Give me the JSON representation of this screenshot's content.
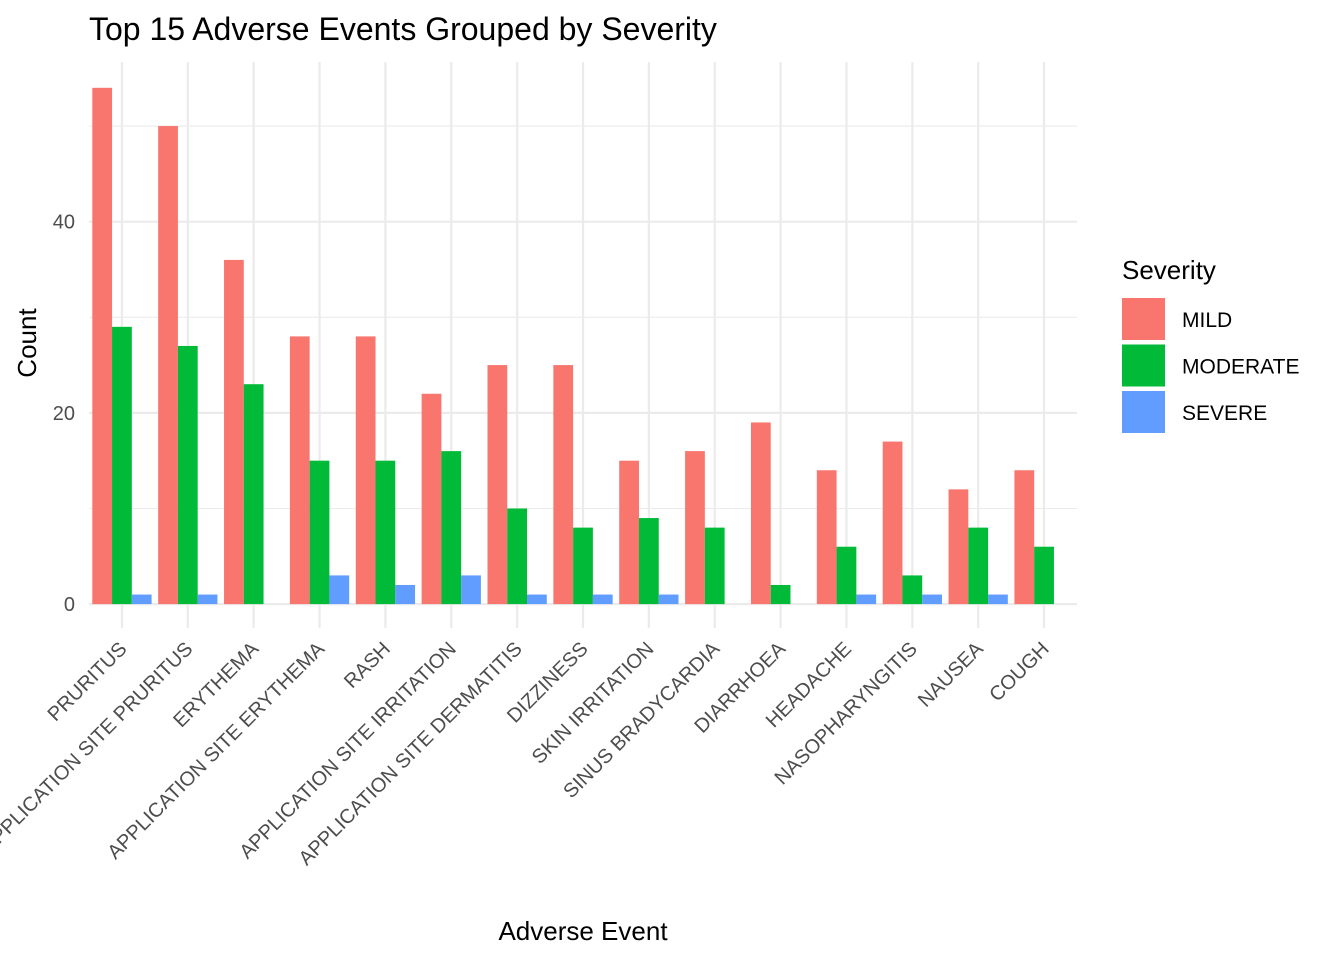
{
  "chart_data": {
    "type": "bar",
    "title": "Top 15 Adverse Events Grouped by Severity",
    "xlabel": "Adverse Event",
    "ylabel": "Count",
    "ylim": [
      -2.5,
      56.7
    ],
    "yticks": [
      0,
      20,
      40
    ],
    "grid": true,
    "legend": {
      "title": "Severity",
      "position": "right"
    },
    "categories": [
      "PRURITUS",
      "APPLICATION SITE PRURITUS",
      "ERYTHEMA",
      "APPLICATION SITE ERYTHEMA",
      "RASH",
      "APPLICATION SITE IRRITATION",
      "APPLICATION SITE DERMATITIS",
      "DIZZINESS",
      "SKIN IRRITATION",
      "SINUS BRADYCARDIA",
      "DIARRHOEA",
      "HEADACHE",
      "NASOPHARYNGITIS",
      "NAUSEA",
      "COUGH"
    ],
    "series": [
      {
        "name": "MILD",
        "color": "#F8766D",
        "values": [
          54,
          50,
          36,
          28,
          28,
          22,
          25,
          25,
          15,
          16,
          19,
          14,
          17,
          12,
          14
        ]
      },
      {
        "name": "MODERATE",
        "color": "#00BA38",
        "values": [
          29,
          27,
          23,
          15,
          15,
          16,
          10,
          8,
          9,
          8,
          2,
          6,
          3,
          8,
          6
        ]
      },
      {
        "name": "SEVERE",
        "color": "#619CFF",
        "values": [
          1,
          1,
          0,
          3,
          2,
          3,
          1,
          1,
          1,
          0,
          0,
          1,
          1,
          1,
          0
        ]
      }
    ]
  }
}
